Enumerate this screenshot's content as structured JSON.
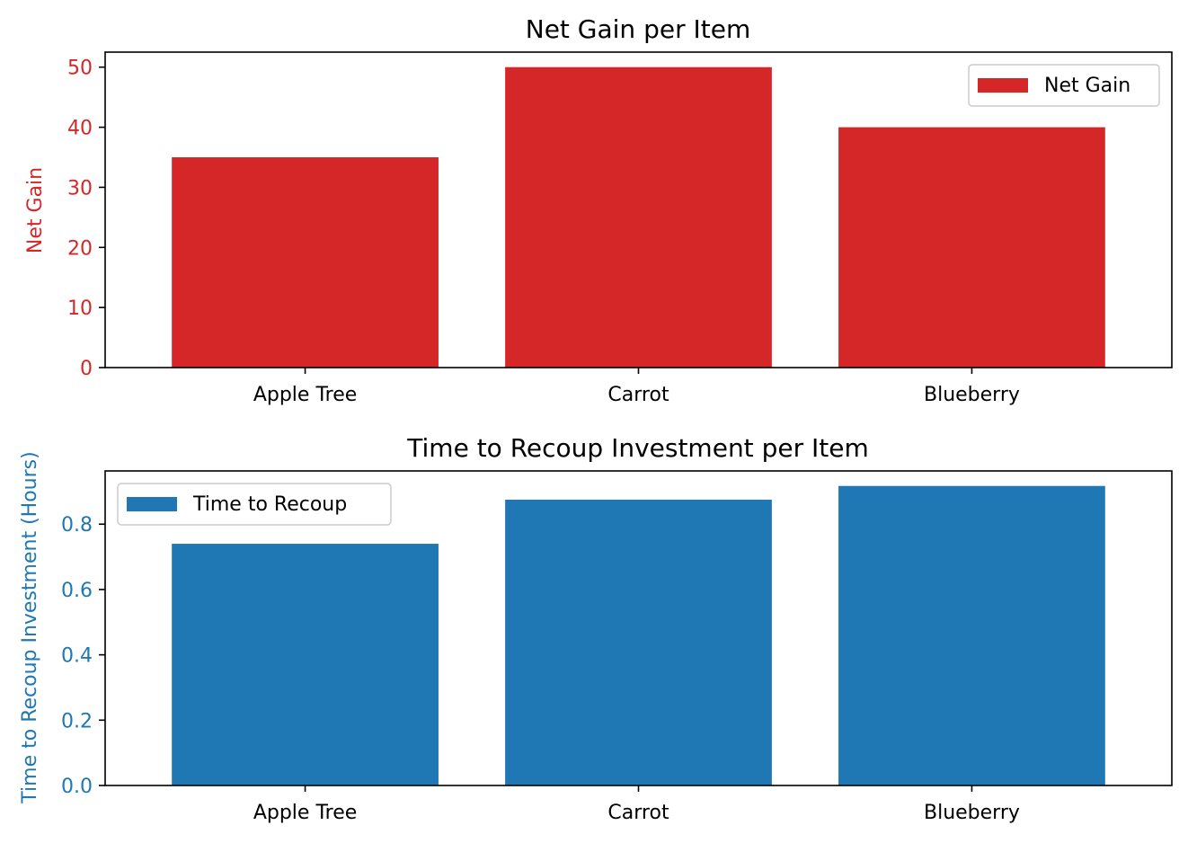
{
  "chart_data": [
    {
      "type": "bar",
      "title": "Net Gain per Item",
      "categories": [
        "Apple Tree",
        "Carrot",
        "Blueberry"
      ],
      "series": [
        {
          "name": "Net Gain",
          "values": [
            35,
            50,
            40
          ],
          "color": "#d62728"
        }
      ],
      "xlabel": "",
      "ylabel": "Net Gain",
      "ylabel_color": "#d62728",
      "ytick_color": "#d62728",
      "ylim": [
        0,
        52.5
      ],
      "yticks": [
        0,
        10,
        20,
        30,
        40,
        50
      ],
      "ytick_labels": [
        "0",
        "10",
        "20",
        "30",
        "40",
        "50"
      ],
      "grid": false,
      "legend": "upper right"
    },
    {
      "type": "bar",
      "title": "Time to Recoup Investment per Item",
      "categories": [
        "Apple Tree",
        "Carrot",
        "Blueberry"
      ],
      "series": [
        {
          "name": "Time to Recoup",
          "values": [
            0.74,
            0.875,
            0.917
          ],
          "color": "#1f77b4"
        }
      ],
      "xlabel": "",
      "ylabel": "Time to Recoup Investment (Hours)",
      "ylabel_color": "#1f77b4",
      "ytick_color": "#1f77b4",
      "ylim": [
        0,
        0.963
      ],
      "yticks": [
        0.0,
        0.2,
        0.4,
        0.6,
        0.8
      ],
      "ytick_labels": [
        "0.0",
        "0.2",
        "0.4",
        "0.6",
        "0.8"
      ],
      "grid": false,
      "legend": "upper left"
    }
  ]
}
